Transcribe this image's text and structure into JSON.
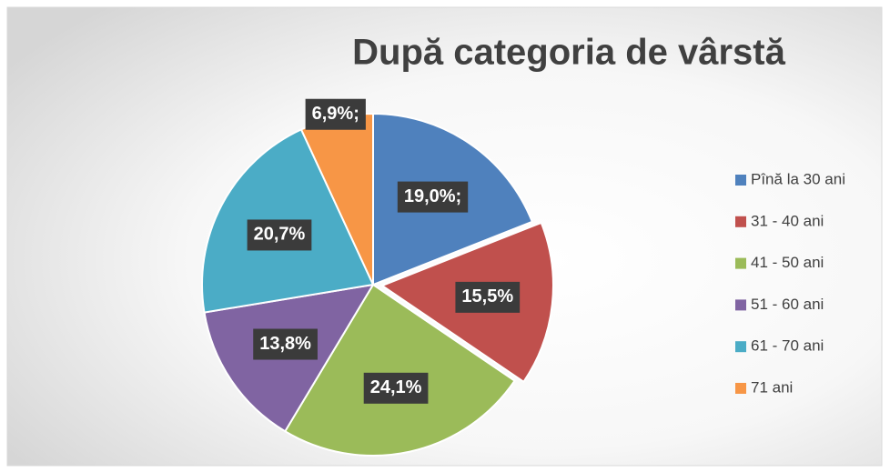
{
  "chart_data": {
    "type": "pie",
    "title": "După categoria de vârstă",
    "categories": [
      "Pînă la 30 ani",
      "31 - 40 ani",
      "41 - 50 ani",
      "51 - 60 ani",
      "61 - 70 ani",
      "71 ani"
    ],
    "values": [
      19.0,
      15.5,
      24.1,
      13.8,
      20.7,
      6.9
    ],
    "value_labels": [
      "19,0%;",
      "15,5%",
      "24,1%",
      "13,8%",
      "20,7%",
      "6,9%;"
    ],
    "colors": [
      "#4f81bd",
      "#c0504d",
      "#9bbb59",
      "#8064a2",
      "#4bacc6",
      "#f79646"
    ],
    "legend": "right"
  }
}
